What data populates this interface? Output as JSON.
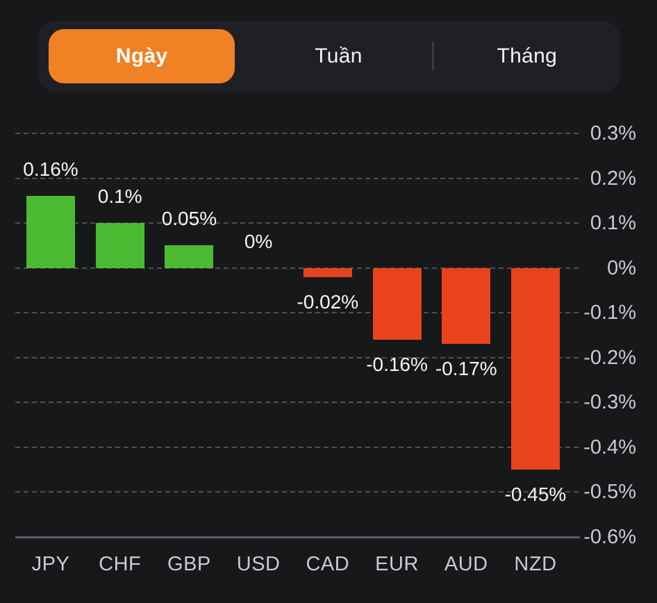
{
  "tab_bar": {
    "items": [
      {
        "label": "Ngày",
        "selected": true
      },
      {
        "label": "Tuần",
        "selected": false
      },
      {
        "label": "Tháng",
        "selected": false
      }
    ]
  },
  "colors": {
    "accent_orange": "#f08125",
    "positive_green": "#4cbb33",
    "negative_red": "#e9431d",
    "background": "#17181a",
    "tab_container": "#1f2025",
    "gridline": "#4e5057",
    "axis_line": "#5a5c63",
    "tick_label": "#c9cbd2",
    "value_label": "#f4f5f7"
  },
  "chart_data": {
    "type": "bar",
    "title": "",
    "xlabel": "",
    "ylabel": "",
    "unit": "%",
    "categories": [
      "JPY",
      "CHF",
      "GBP",
      "USD",
      "CAD",
      "EUR",
      "AUD",
      "NZD"
    ],
    "values": [
      0.16,
      0.1,
      0.05,
      0,
      -0.02,
      -0.16,
      -0.17,
      -0.45
    ],
    "bar_labels": [
      "0.16%",
      "0.1%",
      "0.05%",
      "0%",
      "-0.02%",
      "-0.16%",
      "-0.17%",
      "-0.45%"
    ],
    "y_ticks": [
      {
        "value": 0.3,
        "label": "0.3%"
      },
      {
        "value": 0.2,
        "label": "0.2%"
      },
      {
        "value": 0.1,
        "label": "0.1%"
      },
      {
        "value": 0,
        "label": "0%"
      },
      {
        "value": -0.1,
        "label": "-0.1%"
      },
      {
        "value": -0.2,
        "label": "-0.2%"
      },
      {
        "value": -0.3,
        "label": "-0.3%"
      },
      {
        "value": -0.4,
        "label": "-0.4%"
      },
      {
        "value": -0.5,
        "label": "-0.5%"
      },
      {
        "value": -0.6,
        "label": "-0.6%"
      }
    ],
    "ylim": [
      -0.6,
      0.3
    ],
    "grid": "horizontal-dashed",
    "legend_position": "none",
    "axis_side": "right"
  }
}
